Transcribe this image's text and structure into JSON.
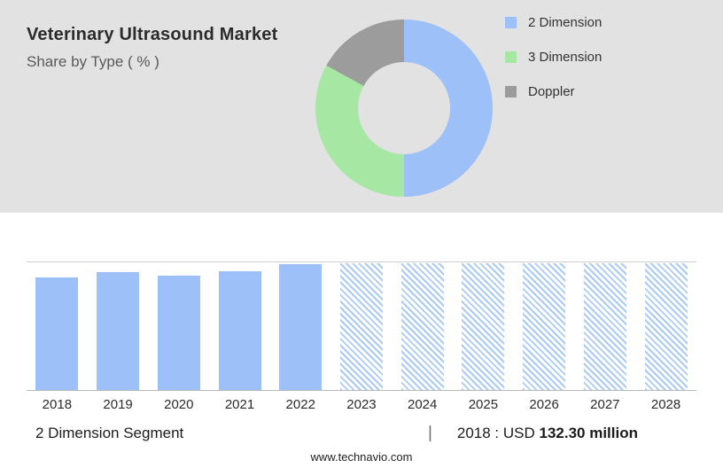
{
  "colors": {
    "blue": "#9cc0f7",
    "green": "#a5e7a3",
    "gray": "#9c9c9c",
    "hatch": "#abcbf6",
    "header-bg": "#e2e2e2"
  },
  "header": {
    "title": "Veterinary Ultrasound Market",
    "subtitle": "Share by Type ( % )"
  },
  "chart_data": [
    {
      "type": "pie",
      "title": "Share by Type ( % )",
      "donut": true,
      "legend_position": "right",
      "segments": [
        {
          "label": "2 Dimension",
          "value": 50,
          "color": "blue"
        },
        {
          "label": "3 Dimension",
          "value": 33,
          "color": "green"
        },
        {
          "label": "Doppler",
          "value": 17,
          "color": "gray"
        }
      ]
    },
    {
      "type": "bar",
      "title": "2 Dimension Segment",
      "xlabel": "",
      "ylabel": "",
      "ylim": [
        0,
        150
      ],
      "grid": "top-and-baseline only",
      "known_point": "2018 : USD 132.30 million",
      "bars": [
        {
          "year": "2018",
          "value": 132.3,
          "forecast": false
        },
        {
          "year": "2019",
          "value": 138.5,
          "forecast": false
        },
        {
          "year": "2020",
          "value": 134.0,
          "forecast": false
        },
        {
          "year": "2021",
          "value": 139.5,
          "forecast": false
        },
        {
          "year": "2022",
          "value": 148.0,
          "forecast": false
        },
        {
          "year": "2023",
          "value": 149.0,
          "forecast": true
        },
        {
          "year": "2024",
          "value": 149.0,
          "forecast": true
        },
        {
          "year": "2025",
          "value": 149.0,
          "forecast": true
        },
        {
          "year": "2026",
          "value": 149.0,
          "forecast": true
        },
        {
          "year": "2027",
          "value": 149.0,
          "forecast": true
        },
        {
          "year": "2028",
          "value": 149.0,
          "forecast": true
        }
      ]
    }
  ],
  "footer": {
    "segment_label": "2 Dimension Segment",
    "separator": "|",
    "note_prefix": "2018 : USD",
    "note_value": "132.30 million",
    "website": "www.technavio.com"
  }
}
